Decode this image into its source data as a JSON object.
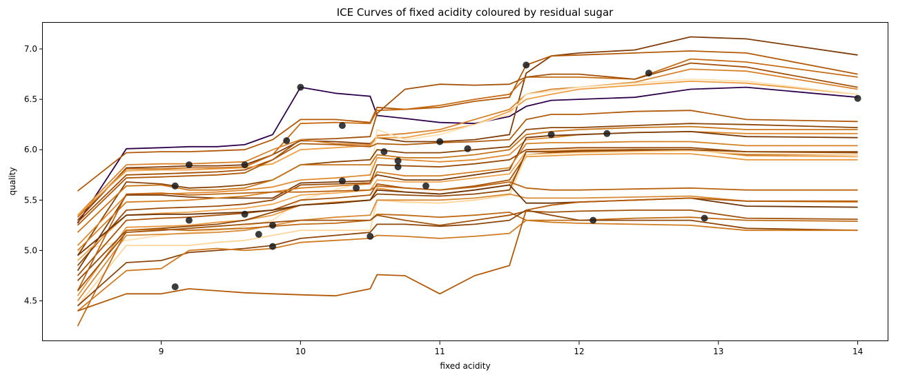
{
  "chart_data": {
    "type": "line",
    "title": "ICE Curves of fixed acidity coloured by residual sugar",
    "xlabel": "fixed acidity",
    "ylabel": "quality",
    "xlim": [
      8.15,
      14.22
    ],
    "ylim": [
      4.1,
      7.26
    ],
    "x_ticks": [
      9,
      10,
      11,
      12,
      13,
      14
    ],
    "y_ticks": [
      4.5,
      5.0,
      5.5,
      6.0,
      6.5,
      7.0
    ],
    "x_tick_labels": [
      "9",
      "10",
      "11",
      "12",
      "13",
      "14"
    ],
    "y_tick_labels": [
      "4.5",
      "5.0",
      "5.5",
      "6.0",
      "6.5",
      "7.0"
    ],
    "grid": false,
    "legend": "none",
    "x": [
      8.4,
      8.75,
      9.0,
      9.2,
      9.4,
      9.6,
      9.8,
      10.0,
      10.25,
      10.5,
      10.55,
      10.75,
      11.0,
      11.25,
      11.5,
      11.62,
      11.8,
      12.0,
      12.4,
      12.8,
      13.2,
      14.0
    ],
    "series": [
      {
        "color": "#2d004b",
        "values": [
          5.27,
          6.01,
          6.02,
          6.03,
          6.03,
          6.05,
          6.15,
          6.62,
          6.56,
          6.53,
          6.34,
          6.31,
          6.27,
          6.26,
          6.33,
          6.43,
          6.49,
          6.5,
          6.52,
          6.6,
          6.62,
          6.52
        ],
        "point": [
          10.0,
          6.62
        ]
      },
      {
        "color": "#7f3b08",
        "values": [
          5.3,
          5.82,
          5.83,
          5.84,
          5.84,
          5.85,
          5.95,
          6.09,
          6.08,
          6.06,
          6.12,
          6.08,
          6.08,
          6.1,
          6.15,
          6.76,
          6.93,
          6.96,
          6.99,
          7.12,
          7.1,
          6.94
        ],
        "point": [
          11.62,
          6.84
        ]
      },
      {
        "color": "#b35806",
        "values": [
          5.59,
          5.97,
          5.98,
          5.98,
          5.99,
          6.0,
          6.1,
          6.3,
          6.3,
          6.27,
          6.42,
          6.4,
          6.42,
          6.48,
          6.52,
          6.84,
          6.93,
          6.94,
          6.96,
          6.98,
          6.96,
          6.75
        ],
        "point": [
          10.3,
          6.24
        ]
      },
      {
        "color": "#c76b12",
        "values": [
          5.33,
          5.81,
          5.81,
          5.82,
          5.82,
          5.83,
          5.95,
          6.26,
          6.27,
          6.26,
          6.39,
          6.4,
          6.44,
          6.5,
          6.55,
          6.72,
          6.72,
          6.72,
          6.7,
          6.9,
          6.87,
          6.72
        ],
        "point": [
          12.5,
          6.76
        ]
      },
      {
        "color": "#a34f06",
        "values": [
          5.28,
          5.75,
          5.76,
          5.77,
          5.78,
          5.8,
          5.9,
          6.1,
          6.11,
          6.13,
          6.36,
          6.6,
          6.65,
          6.64,
          6.65,
          6.72,
          6.75,
          6.75,
          6.7,
          6.86,
          6.82,
          6.62
        ],
        "point": [
          11.2,
          6.01
        ]
      },
      {
        "color": "#d9822b",
        "values": [
          5.35,
          5.85,
          5.86,
          5.86,
          5.87,
          5.88,
          6.0,
          6.1,
          6.06,
          6.05,
          6.14,
          6.16,
          6.2,
          6.3,
          6.4,
          6.55,
          6.6,
          6.62,
          6.67,
          6.8,
          6.78,
          6.6
        ],
        "point": [
          11.8,
          6.15
        ]
      },
      {
        "color": "#ee9e42",
        "values": [
          5.35,
          5.79,
          5.8,
          5.8,
          5.81,
          5.82,
          5.86,
          6.0,
          6.02,
          6.04,
          6.12,
          6.12,
          6.18,
          6.25,
          6.38,
          6.5,
          6.55,
          6.6,
          6.64,
          6.68,
          6.66,
          6.55
        ],
        "point": [
          11.0,
          6.08
        ]
      },
      {
        "color": "#ffe0b2",
        "values": [
          5.0,
          5.1,
          5.15,
          5.18,
          5.2,
          5.24,
          5.3,
          5.5,
          5.6,
          5.7,
          6.2,
          6.1,
          6.15,
          6.25,
          6.35,
          6.55,
          6.58,
          6.62,
          6.66,
          6.7,
          6.68,
          6.55
        ],
        "point": [
          14.0,
          6.51
        ]
      },
      {
        "color": "#b05a0b",
        "values": [
          5.25,
          5.72,
          5.73,
          5.74,
          5.75,
          5.77,
          5.9,
          6.06,
          6.05,
          6.03,
          6.06,
          6.05,
          6.07,
          6.08,
          6.1,
          6.3,
          6.35,
          6.35,
          6.38,
          6.39,
          6.3,
          6.28
        ],
        "point": [
          12.2,
          6.16
        ]
      },
      {
        "color": "#8a4406",
        "values": [
          4.95,
          5.68,
          5.66,
          5.62,
          5.63,
          5.65,
          5.7,
          5.85,
          5.88,
          5.9,
          6.0,
          5.97,
          5.97,
          6.0,
          6.03,
          6.2,
          6.22,
          6.22,
          6.24,
          6.26,
          6.25,
          6.22
        ],
        "point": [
          10.6,
          5.98
        ]
      },
      {
        "color": "#c77418",
        "values": [
          5.18,
          5.64,
          5.65,
          5.6,
          5.6,
          5.62,
          5.7,
          5.85,
          5.85,
          5.85,
          5.95,
          5.92,
          5.92,
          5.95,
          6.0,
          6.15,
          6.18,
          6.2,
          6.22,
          6.23,
          6.2,
          6.2
        ],
        "point": [
          9.6,
          5.85
        ]
      },
      {
        "color": "#e08b30",
        "values": [
          5.05,
          5.55,
          5.56,
          5.57,
          5.58,
          5.6,
          5.63,
          5.7,
          5.72,
          5.75,
          5.92,
          5.9,
          5.88,
          5.9,
          5.95,
          6.1,
          6.12,
          6.15,
          6.17,
          6.18,
          6.16,
          6.16
        ],
        "point": [
          10.7,
          5.89
        ]
      },
      {
        "color": "#9a4a07",
        "values": [
          4.85,
          5.4,
          5.42,
          5.43,
          5.44,
          5.46,
          5.5,
          5.65,
          5.66,
          5.67,
          5.85,
          5.84,
          5.83,
          5.86,
          5.9,
          6.0,
          6.01,
          6.02,
          6.02,
          6.02,
          5.98,
          5.97
        ],
        "point": [
          10.7,
          5.83
        ]
      },
      {
        "color": "#7a3a08",
        "values": [
          4.8,
          5.55,
          5.55,
          5.53,
          5.52,
          5.52,
          5.52,
          5.67,
          5.68,
          5.69,
          5.75,
          5.7,
          5.7,
          5.75,
          5.8,
          6.12,
          6.14,
          6.15,
          6.17,
          6.18,
          6.13,
          6.12
        ],
        "point": [
          10.3,
          5.69
        ]
      },
      {
        "color": "#d47f22",
        "values": [
          5.0,
          5.48,
          5.49,
          5.5,
          5.52,
          5.54,
          5.58,
          5.62,
          5.64,
          5.66,
          5.78,
          5.74,
          5.74,
          5.78,
          5.82,
          6.06,
          6.07,
          6.07,
          6.08,
          6.08,
          6.04,
          6.04
        ],
        "point": [
          10.4,
          5.62
        ]
      },
      {
        "color": "#f0a550",
        "values": [
          4.9,
          5.35,
          5.37,
          5.38,
          5.4,
          5.42,
          5.46,
          5.55,
          5.57,
          5.6,
          5.7,
          5.68,
          5.68,
          5.72,
          5.76,
          5.98,
          5.99,
          6.0,
          6.0,
          6.0,
          5.94,
          5.93
        ],
        "point": [
          9.9,
          6.09
        ]
      },
      {
        "color": "#a85308",
        "values": [
          4.75,
          5.3,
          5.32,
          5.33,
          5.35,
          5.37,
          5.4,
          5.5,
          5.52,
          5.55,
          5.66,
          5.62,
          5.6,
          5.64,
          5.7,
          5.95,
          5.97,
          5.98,
          5.99,
          6.0,
          5.95,
          5.95
        ],
        "point": [
          10.9,
          5.64
        ]
      },
      {
        "color": "#e8973c",
        "values": [
          4.55,
          5.23,
          5.24,
          5.25,
          5.28,
          5.3,
          5.35,
          5.45,
          5.48,
          5.5,
          5.62,
          5.58,
          5.56,
          5.6,
          5.65,
          5.93,
          5.94,
          5.95,
          5.96,
          5.96,
          5.9,
          5.9
        ],
        "point": [
          9.2,
          5.85
        ]
      },
      {
        "color": "#ffd59a",
        "values": [
          4.45,
          5.05,
          5.05,
          5.05,
          5.08,
          5.1,
          5.15,
          5.2,
          5.2,
          5.2,
          5.5,
          5.48,
          5.47,
          5.5,
          5.55,
          5.95,
          5.96,
          5.97,
          5.98,
          5.99,
          5.96,
          5.95
        ],
        "point": [
          9.8,
          5.04
        ]
      },
      {
        "color": "#8f4807",
        "values": [
          4.7,
          5.2,
          5.22,
          5.24,
          5.26,
          5.3,
          5.38,
          5.45,
          5.47,
          5.5,
          5.56,
          5.55,
          5.54,
          5.56,
          5.6,
          5.98,
          5.98,
          5.99,
          6.0,
          6.0,
          5.98,
          5.98
        ],
        "point": [
          9.8,
          5.25
        ]
      },
      {
        "color": "#bb6310",
        "values": [
          4.6,
          5.56,
          5.57,
          5.55,
          5.56,
          5.57,
          5.58,
          5.58,
          5.59,
          5.6,
          5.64,
          5.62,
          5.6,
          5.63,
          5.68,
          5.62,
          5.6,
          5.6,
          5.61,
          5.62,
          5.6,
          5.6
        ],
        "point": [
          9.1,
          5.64
        ]
      },
      {
        "color": "#d88a35",
        "values": [
          4.5,
          5.15,
          5.16,
          5.17,
          5.18,
          5.2,
          5.25,
          5.3,
          5.33,
          5.35,
          5.5,
          5.5,
          5.5,
          5.52,
          5.56,
          5.52,
          5.52,
          5.52,
          5.53,
          5.54,
          5.49,
          5.48
        ],
        "point": [
          9.2,
          5.3
        ]
      },
      {
        "color": "#6f3406",
        "values": [
          4.95,
          5.35,
          5.36,
          5.36,
          5.37,
          5.38,
          5.4,
          5.45,
          5.47,
          5.5,
          5.6,
          5.58,
          5.56,
          5.6,
          5.65,
          5.47,
          5.47,
          5.48,
          5.5,
          5.52,
          5.44,
          5.43
        ],
        "point": [
          9.6,
          5.36
        ]
      },
      {
        "color": "#c06a14",
        "values": [
          4.25,
          5.2,
          5.21,
          5.2,
          5.21,
          5.22,
          5.24,
          5.26,
          5.27,
          5.3,
          5.36,
          5.35,
          5.33,
          5.35,
          5.38,
          5.3,
          5.3,
          5.3,
          5.32,
          5.33,
          5.3,
          5.29
        ],
        "point": [
          12.9,
          5.32
        ]
      },
      {
        "color": "#a0510a",
        "values": [
          4.6,
          5.18,
          5.2,
          5.22,
          5.24,
          5.26,
          5.28,
          5.3,
          5.3,
          5.3,
          5.35,
          5.3,
          5.25,
          5.3,
          5.35,
          5.39,
          5.38,
          5.39,
          5.4,
          5.4,
          5.32,
          5.31
        ],
        "point": [
          12.1,
          5.3
        ]
      },
      {
        "color": "#8c4408",
        "values": [
          4.45,
          4.88,
          4.9,
          4.98,
          5.0,
          5.02,
          5.05,
          5.12,
          5.15,
          5.18,
          5.26,
          5.26,
          5.24,
          5.26,
          5.3,
          5.4,
          5.35,
          5.3,
          5.3,
          5.3,
          5.22,
          5.2
        ],
        "point": [
          9.7,
          5.16
        ]
      },
      {
        "color": "#d07a20",
        "values": [
          4.4,
          4.8,
          4.82,
          5.0,
          5.02,
          5.0,
          5.02,
          5.08,
          5.1,
          5.12,
          5.15,
          5.14,
          5.12,
          5.14,
          5.17,
          5.3,
          5.28,
          5.27,
          5.26,
          5.25,
          5.2,
          5.2
        ],
        "point": [
          10.5,
          5.14
        ]
      },
      {
        "color": "#b35806",
        "values": [
          4.4,
          4.57,
          4.57,
          4.62,
          4.6,
          4.58,
          4.57,
          4.56,
          4.55,
          4.62,
          4.76,
          4.75,
          4.57,
          4.75,
          4.85,
          5.4,
          5.45,
          5.48,
          5.5,
          5.52,
          5.49,
          5.49
        ],
        "point": [
          9.1,
          4.64
        ]
      }
    ]
  }
}
